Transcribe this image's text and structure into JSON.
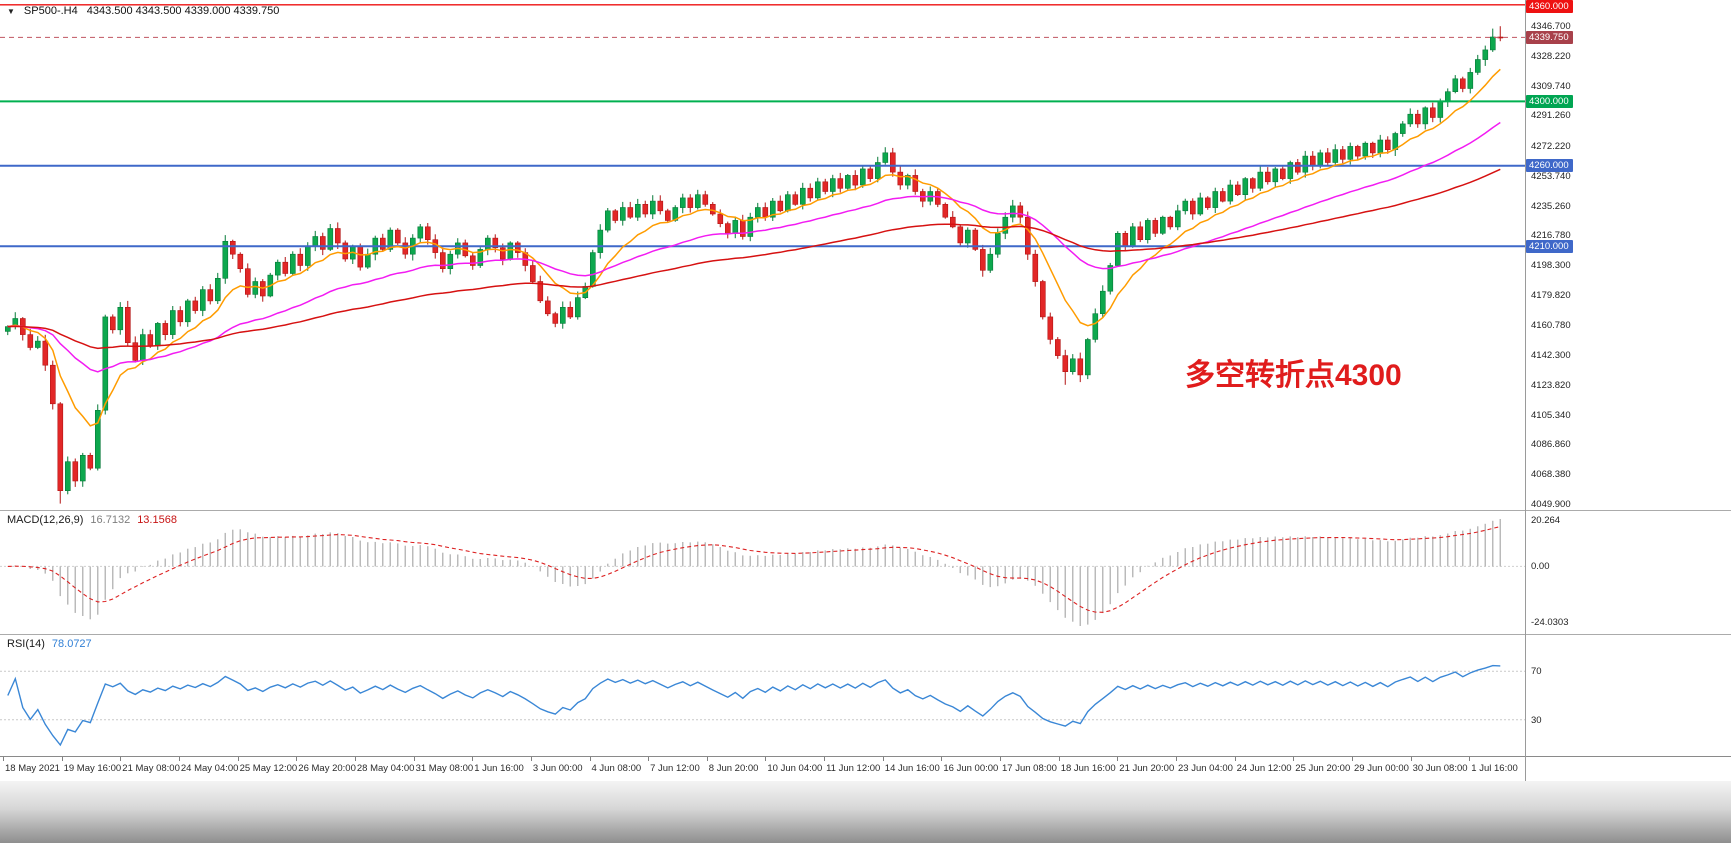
{
  "terminal": {
    "header": {
      "collapse_icon": "▼",
      "symbol": "SP500-.H4",
      "ohlc": "4343.500 4343.500 4339.000 4339.750"
    },
    "annotation": "多空转折点4300",
    "price_axis": {
      "tick_labels": [
        "4346.700",
        "4328.220",
        "4309.740",
        "4291.260",
        "4272.220",
        "4253.740",
        "4235.260",
        "4216.780",
        "4198.300",
        "4179.820",
        "4160.780",
        "4142.300",
        "4123.820",
        "4105.340",
        "4086.860",
        "4068.380",
        "4049.900"
      ],
      "badges": [
        {
          "text": "4360.000",
          "price": 4360,
          "bg": "#ee1111"
        },
        {
          "text": "4339.750",
          "price": 4339.75,
          "bg": "#a8414b"
        },
        {
          "text": "4300.000",
          "price": 4300,
          "bg": "#00a552"
        },
        {
          "text": "4260.000",
          "price": 4260,
          "bg": "#3f68c9"
        },
        {
          "text": "4210.000",
          "price": 4210,
          "bg": "#3f68c9"
        }
      ]
    },
    "macd": {
      "name": "MACD(12,26,9)",
      "value_main": "16.7132",
      "value_signal": "13.1568",
      "axis_max": "20.264",
      "axis_zero": "0.00",
      "axis_min": "-24.0303"
    },
    "rsi": {
      "name": "RSI(14)",
      "value": "78.0727",
      "level_high": "70",
      "level_low": "30"
    },
    "time_axis": [
      "18 May 2021",
      "19 May 16:00",
      "21 May 08:00",
      "24 May 04:00",
      "25 May 12:00",
      "26 May 20:00",
      "28 May 04:00",
      "31 May 08:00",
      "1 Jun 16:00",
      "3 Jun 00:00",
      "4 Jun 08:00",
      "7 Jun 12:00",
      "8 Jun 20:00",
      "10 Jun 04:00",
      "11 Jun 12:00",
      "14 Jun 16:00",
      "16 Jun 00:00",
      "17 Jun 08:00",
      "18 Jun 16:00",
      "21 Jun 20:00",
      "23 Jun 04:00",
      "24 Jun 12:00",
      "25 Jun 20:00",
      "29 Jun 00:00",
      "30 Jun 08:00",
      "1 Jul 16:00"
    ]
  },
  "chart_data": {
    "type": "candlestick",
    "symbol": "SP500-.H4",
    "timeframe": "H4",
    "x_range": [
      "18 May 2021",
      "2 Jul 2021"
    ],
    "y_range": [
      4046,
      4363
    ],
    "current_bar_ohlc": [
      4343.5,
      4343.5,
      4339.0,
      4339.75
    ],
    "current_price": 4339.75,
    "closes": [
      4160,
      4165,
      4155,
      4147,
      4151,
      4136,
      4112,
      4058,
      4076,
      4064,
      4080,
      4072,
      4108,
      4166,
      4158,
      4172,
      4150,
      4139,
      4155,
      4148,
      4162,
      4155,
      4170,
      4163,
      4176,
      4170,
      4183,
      4176,
      4190,
      4213,
      4205,
      4196,
      4180,
      4188,
      4179,
      4192,
      4200,
      4193,
      4205,
      4198,
      4210,
      4216,
      4208,
      4221,
      4212,
      4202,
      4210,
      4197,
      4205,
      4215,
      4208,
      4220,
      4212,
      4205,
      4215,
      4222,
      4214,
      4206,
      4196,
      4205,
      4212,
      4204,
      4198,
      4208,
      4215,
      4209,
      4202,
      4212,
      4206,
      4198,
      4188,
      4176,
      4168,
      4162,
      4172,
      4166,
      4178,
      4185,
      4206,
      4220,
      4232,
      4226,
      4234,
      4228,
      4236,
      4230,
      4238,
      4232,
      4226,
      4234,
      4240,
      4234,
      4242,
      4236,
      4230,
      4224,
      4218,
      4226,
      4216,
      4228,
      4234,
      4228,
      4238,
      4232,
      4242,
      4236,
      4246,
      4240,
      4250,
      4244,
      4252,
      4246,
      4254,
      4248,
      4258,
      4252,
      4262,
      4268,
      4256,
      4248,
      4254,
      4244,
      4238,
      4244,
      4236,
      4228,
      4222,
      4212,
      4220,
      4208,
      4195,
      4205,
      4218,
      4228,
      4235,
      4228,
      4205,
      4188,
      4166,
      4152,
      4142,
      4132,
      4140,
      4130,
      4152,
      4168,
      4182,
      4198,
      4218,
      4210,
      4222,
      4214,
      4226,
      4218,
      4228,
      4222,
      4232,
      4238,
      4230,
      4240,
      4234,
      4244,
      4238,
      4248,
      4242,
      4252,
      4246,
      4256,
      4250,
      4258,
      4252,
      4262,
      4256,
      4266,
      4260,
      4268,
      4262,
      4270,
      4264,
      4272,
      4266,
      4274,
      4268,
      4276,
      4270,
      4280,
      4286,
      4292,
      4286,
      4296,
      4290,
      4300,
      4306,
      4314,
      4308,
      4318,
      4326,
      4332,
      4340,
      4339.75
    ],
    "wick_overrides": {
      "7": {
        "low": 4050
      },
      "117": {
        "high": 4271.5
      },
      "130": {
        "low": 4191
      },
      "141": {
        "low": 4123.8
      },
      "143": {
        "low": 4125.5
      },
      "198": {
        "high": 4345.2
      },
      "199": {
        "high": 4346.7
      }
    },
    "horizontal_lines": [
      {
        "price": 4360,
        "color": "#ee1111",
        "width": 1.4
      },
      {
        "price": 4339.75,
        "color": "#c05560",
        "width": 1,
        "dash": "5 4"
      },
      {
        "price": 4300,
        "color": "#00b050",
        "width": 2
      },
      {
        "price": 4260,
        "color": "#3f68c9",
        "width": 2
      },
      {
        "price": 4210,
        "color": "#3f68c9",
        "width": 2
      }
    ],
    "moving_averages": [
      {
        "color": "#ff9c00",
        "period": 10
      },
      {
        "color": "#f21cf2",
        "period": 34
      },
      {
        "color": "#d61111",
        "period": 80
      }
    ],
    "candle_colors": {
      "up": "#0da84e",
      "up_border": "#077a39",
      "down": "#e22727",
      "down_border": "#b31414"
    },
    "macd": {
      "fast": 12,
      "slow": 26,
      "signal_period": 9,
      "current_macd": 16.7132,
      "current_signal": 13.1568,
      "scale_max": 20.264,
      "scale_min": -24.0303,
      "histogram_color": "#b6b6b6",
      "signal_color": "#dd2222"
    },
    "rsi": {
      "period": 14,
      "current": 78.0727,
      "levels": [
        70,
        30
      ],
      "color": "#3a87d6"
    }
  }
}
